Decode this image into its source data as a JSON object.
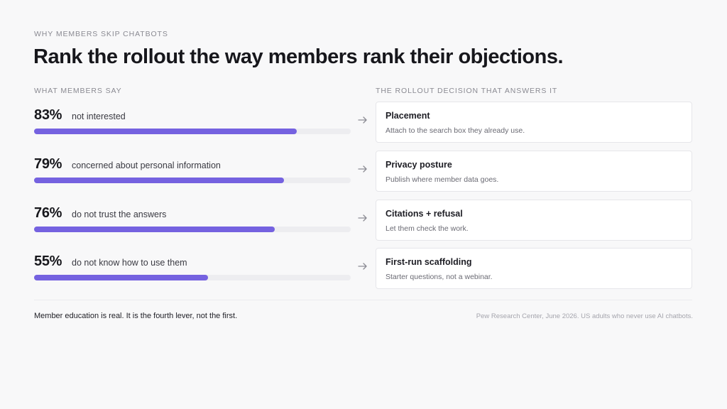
{
  "eyebrow": "WHY MEMBERS SKIP CHATBOTS",
  "title": "Rank the rollout the way members rank their objections.",
  "columns": {
    "left": "WHAT MEMBERS SAY",
    "right": "THE ROLLOUT DECISION THAT ANSWERS IT"
  },
  "rows": [
    {
      "pct": "83%",
      "value": 83,
      "reason": "not interested",
      "card_title": "Placement",
      "card_sub": "Attach to the search box they already use."
    },
    {
      "pct": "79%",
      "value": 79,
      "reason": "concerned about personal information",
      "card_title": "Privacy posture",
      "card_sub": "Publish where member data goes."
    },
    {
      "pct": "76%",
      "value": 76,
      "reason": "do not trust the answers",
      "card_title": "Citations + refusal",
      "card_sub": "Let them check the work."
    },
    {
      "pct": "55%",
      "value": 55,
      "reason": "do not know how to use them",
      "card_title": "First-run scaffolding",
      "card_sub": "Starter questions, not a webinar."
    }
  ],
  "footnote": "Member education is real. It is the fourth lever, not the first.",
  "source": "Pew Research Center, June 2026. US adults who never use AI chatbots.",
  "colors": {
    "bar_fill": "#7562e0",
    "bar_track": "#ededf0",
    "background": "#f8f8f9"
  },
  "icons": {
    "row_arrow": "arrow-right-icon"
  }
}
